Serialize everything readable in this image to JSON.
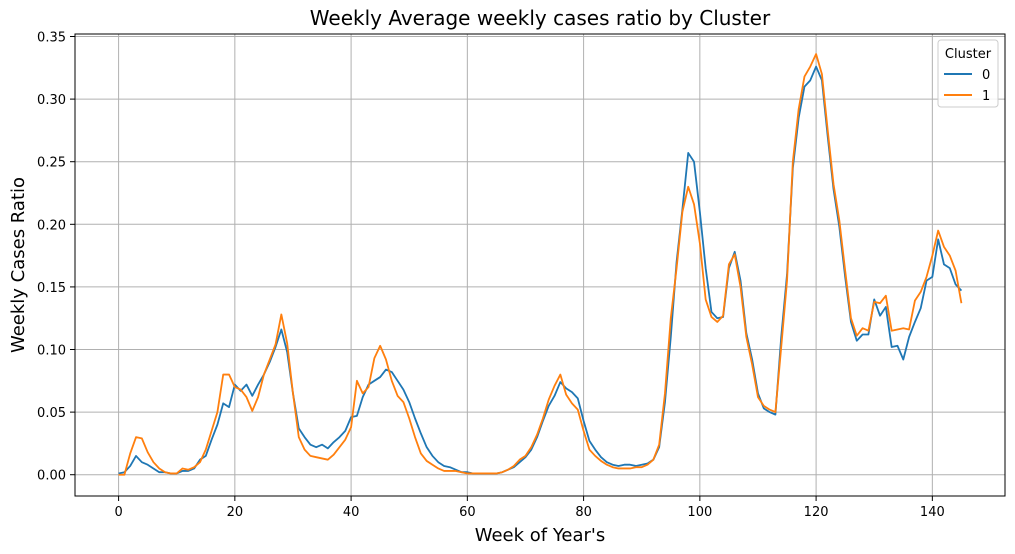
{
  "chart_data": {
    "type": "line",
    "title": "Weekly Average weekly cases ratio by Cluster",
    "xlabel": "Week of Year's",
    "ylabel": "Weekly Cases Ratio",
    "xlim": [
      -7.5,
      152.5
    ],
    "ylim": [
      -0.017,
      0.352
    ],
    "xticks": [
      0,
      20,
      40,
      60,
      80,
      100,
      120,
      140
    ],
    "yticks": [
      0.0,
      0.05,
      0.1,
      0.15,
      0.2,
      0.25,
      0.3,
      0.35
    ],
    "ytick_labels": [
      "0.00",
      "0.05",
      "0.10",
      "0.15",
      "0.20",
      "0.25",
      "0.30",
      "0.35"
    ],
    "grid": true,
    "legend": {
      "title": "Cluster",
      "placement": "top-right"
    },
    "series": [
      {
        "name": "0",
        "color": "#1f77b4",
        "points": [
          [
            0,
            0.001
          ],
          [
            1,
            0.002
          ],
          [
            2,
            0.007
          ],
          [
            3,
            0.015
          ],
          [
            4,
            0.01
          ],
          [
            5,
            0.008
          ],
          [
            6,
            0.005
          ],
          [
            7,
            0.002
          ],
          [
            8,
            0.002
          ],
          [
            9,
            0.001
          ],
          [
            10,
            0.001
          ],
          [
            11,
            0.003
          ],
          [
            12,
            0.003
          ],
          [
            13,
            0.005
          ],
          [
            14,
            0.012
          ],
          [
            15,
            0.015
          ],
          [
            16,
            0.028
          ],
          [
            17,
            0.04
          ],
          [
            18,
            0.057
          ],
          [
            19,
            0.054
          ],
          [
            20,
            0.072
          ],
          [
            21,
            0.067
          ],
          [
            22,
            0.072
          ],
          [
            23,
            0.063
          ],
          [
            24,
            0.072
          ],
          [
            25,
            0.08
          ],
          [
            26,
            0.09
          ],
          [
            27,
            0.102
          ],
          [
            28,
            0.116
          ],
          [
            29,
            0.098
          ],
          [
            30,
            0.065
          ],
          [
            31,
            0.037
          ],
          [
            32,
            0.03
          ],
          [
            33,
            0.024
          ],
          [
            34,
            0.022
          ],
          [
            35,
            0.024
          ],
          [
            36,
            0.021
          ],
          [
            37,
            0.026
          ],
          [
            38,
            0.03
          ],
          [
            39,
            0.035
          ],
          [
            40,
            0.046
          ],
          [
            41,
            0.047
          ],
          [
            42,
            0.062
          ],
          [
            43,
            0.072
          ],
          [
            44,
            0.075
          ],
          [
            45,
            0.078
          ],
          [
            46,
            0.084
          ],
          [
            47,
            0.082
          ],
          [
            48,
            0.075
          ],
          [
            49,
            0.068
          ],
          [
            50,
            0.058
          ],
          [
            51,
            0.045
          ],
          [
            52,
            0.033
          ],
          [
            53,
            0.022
          ],
          [
            54,
            0.015
          ],
          [
            55,
            0.01
          ],
          [
            56,
            0.007
          ],
          [
            57,
            0.006
          ],
          [
            58,
            0.004
          ],
          [
            59,
            0.002
          ],
          [
            60,
            0.002
          ],
          [
            61,
            0.001
          ],
          [
            62,
            0.001
          ],
          [
            63,
            0.001
          ],
          [
            64,
            0.001
          ],
          [
            65,
            0.001
          ],
          [
            66,
            0.002
          ],
          [
            67,
            0.004
          ],
          [
            68,
            0.006
          ],
          [
            69,
            0.01
          ],
          [
            70,
            0.014
          ],
          [
            71,
            0.02
          ],
          [
            72,
            0.03
          ],
          [
            73,
            0.043
          ],
          [
            74,
            0.055
          ],
          [
            75,
            0.063
          ],
          [
            76,
            0.074
          ],
          [
            77,
            0.069
          ],
          [
            78,
            0.066
          ],
          [
            79,
            0.061
          ],
          [
            80,
            0.043
          ],
          [
            81,
            0.027
          ],
          [
            82,
            0.02
          ],
          [
            83,
            0.014
          ],
          [
            84,
            0.01
          ],
          [
            85,
            0.008
          ],
          [
            86,
            0.007
          ],
          [
            87,
            0.008
          ],
          [
            88,
            0.008
          ],
          [
            89,
            0.007
          ],
          [
            90,
            0.008
          ],
          [
            91,
            0.009
          ],
          [
            92,
            0.012
          ],
          [
            93,
            0.022
          ],
          [
            94,
            0.058
          ],
          [
            95,
            0.11
          ],
          [
            96,
            0.17
          ],
          [
            97,
            0.212
          ],
          [
            98,
            0.257
          ],
          [
            99,
            0.25
          ],
          [
            100,
            0.21
          ],
          [
            101,
            0.165
          ],
          [
            102,
            0.13
          ],
          [
            103,
            0.125
          ],
          [
            104,
            0.126
          ],
          [
            105,
            0.165
          ],
          [
            106,
            0.178
          ],
          [
            107,
            0.155
          ],
          [
            108,
            0.113
          ],
          [
            109,
            0.092
          ],
          [
            110,
            0.065
          ],
          [
            111,
            0.053
          ],
          [
            112,
            0.05
          ],
          [
            113,
            0.048
          ],
          [
            114,
            0.11
          ],
          [
            115,
            0.16
          ],
          [
            116,
            0.245
          ],
          [
            117,
            0.285
          ],
          [
            118,
            0.31
          ],
          [
            119,
            0.315
          ],
          [
            120,
            0.326
          ],
          [
            121,
            0.315
          ],
          [
            122,
            0.27
          ],
          [
            123,
            0.228
          ],
          [
            124,
            0.198
          ],
          [
            125,
            0.158
          ],
          [
            126,
            0.122
          ],
          [
            127,
            0.107
          ],
          [
            128,
            0.112
          ],
          [
            129,
            0.112
          ],
          [
            130,
            0.14
          ],
          [
            131,
            0.127
          ],
          [
            132,
            0.134
          ],
          [
            133,
            0.102
          ],
          [
            134,
            0.103
          ],
          [
            135,
            0.092
          ],
          [
            136,
            0.11
          ],
          [
            137,
            0.122
          ],
          [
            138,
            0.133
          ],
          [
            139,
            0.155
          ],
          [
            140,
            0.158
          ],
          [
            141,
            0.188
          ],
          [
            142,
            0.168
          ],
          [
            143,
            0.165
          ],
          [
            144,
            0.152
          ],
          [
            145,
            0.147
          ]
        ]
      },
      {
        "name": "1",
        "color": "#ff7f0e",
        "points": [
          [
            0,
            0.0
          ],
          [
            1,
            0.0
          ],
          [
            2,
            0.017
          ],
          [
            3,
            0.03
          ],
          [
            4,
            0.029
          ],
          [
            5,
            0.018
          ],
          [
            6,
            0.01
          ],
          [
            7,
            0.005
          ],
          [
            8,
            0.002
          ],
          [
            9,
            0.001
          ],
          [
            10,
            0.001
          ],
          [
            11,
            0.005
          ],
          [
            12,
            0.004
          ],
          [
            13,
            0.006
          ],
          [
            14,
            0.01
          ],
          [
            15,
            0.02
          ],
          [
            16,
            0.035
          ],
          [
            17,
            0.05
          ],
          [
            18,
            0.08
          ],
          [
            19,
            0.08
          ],
          [
            20,
            0.07
          ],
          [
            21,
            0.068
          ],
          [
            22,
            0.062
          ],
          [
            23,
            0.051
          ],
          [
            24,
            0.062
          ],
          [
            25,
            0.08
          ],
          [
            26,
            0.092
          ],
          [
            27,
            0.104
          ],
          [
            28,
            0.128
          ],
          [
            29,
            0.105
          ],
          [
            30,
            0.065
          ],
          [
            31,
            0.03
          ],
          [
            32,
            0.02
          ],
          [
            33,
            0.015
          ],
          [
            34,
            0.014
          ],
          [
            35,
            0.013
          ],
          [
            36,
            0.012
          ],
          [
            37,
            0.016
          ],
          [
            38,
            0.022
          ],
          [
            39,
            0.028
          ],
          [
            40,
            0.038
          ],
          [
            41,
            0.075
          ],
          [
            42,
            0.065
          ],
          [
            43,
            0.07
          ],
          [
            44,
            0.093
          ],
          [
            45,
            0.103
          ],
          [
            46,
            0.092
          ],
          [
            47,
            0.075
          ],
          [
            48,
            0.063
          ],
          [
            49,
            0.058
          ],
          [
            50,
            0.045
          ],
          [
            51,
            0.03
          ],
          [
            52,
            0.017
          ],
          [
            53,
            0.011
          ],
          [
            54,
            0.008
          ],
          [
            55,
            0.005
          ],
          [
            56,
            0.003
          ],
          [
            57,
            0.003
          ],
          [
            58,
            0.003
          ],
          [
            59,
            0.002
          ],
          [
            60,
            0.001
          ],
          [
            61,
            0.001
          ],
          [
            62,
            0.001
          ],
          [
            63,
            0.001
          ],
          [
            64,
            0.001
          ],
          [
            65,
            0.001
          ],
          [
            66,
            0.002
          ],
          [
            67,
            0.004
          ],
          [
            68,
            0.007
          ],
          [
            69,
            0.012
          ],
          [
            70,
            0.015
          ],
          [
            71,
            0.022
          ],
          [
            72,
            0.032
          ],
          [
            73,
            0.045
          ],
          [
            74,
            0.06
          ],
          [
            75,
            0.071
          ],
          [
            76,
            0.08
          ],
          [
            77,
            0.064
          ],
          [
            78,
            0.057
          ],
          [
            79,
            0.052
          ],
          [
            80,
            0.035
          ],
          [
            81,
            0.02
          ],
          [
            82,
            0.015
          ],
          [
            83,
            0.011
          ],
          [
            84,
            0.008
          ],
          [
            85,
            0.006
          ],
          [
            86,
            0.005
          ],
          [
            87,
            0.005
          ],
          [
            88,
            0.005
          ],
          [
            89,
            0.006
          ],
          [
            90,
            0.006
          ],
          [
            91,
            0.008
          ],
          [
            92,
            0.012
          ],
          [
            93,
            0.024
          ],
          [
            94,
            0.065
          ],
          [
            95,
            0.125
          ],
          [
            96,
            0.165
          ],
          [
            97,
            0.21
          ],
          [
            98,
            0.23
          ],
          [
            99,
            0.216
          ],
          [
            100,
            0.185
          ],
          [
            101,
            0.14
          ],
          [
            102,
            0.126
          ],
          [
            103,
            0.122
          ],
          [
            104,
            0.127
          ],
          [
            105,
            0.168
          ],
          [
            106,
            0.176
          ],
          [
            107,
            0.15
          ],
          [
            108,
            0.11
          ],
          [
            109,
            0.088
          ],
          [
            110,
            0.062
          ],
          [
            111,
            0.055
          ],
          [
            112,
            0.052
          ],
          [
            113,
            0.05
          ],
          [
            114,
            0.102
          ],
          [
            115,
            0.155
          ],
          [
            116,
            0.25
          ],
          [
            117,
            0.292
          ],
          [
            118,
            0.318
          ],
          [
            119,
            0.326
          ],
          [
            120,
            0.336
          ],
          [
            121,
            0.32
          ],
          [
            122,
            0.275
          ],
          [
            123,
            0.232
          ],
          [
            124,
            0.203
          ],
          [
            125,
            0.163
          ],
          [
            126,
            0.125
          ],
          [
            127,
            0.111
          ],
          [
            128,
            0.117
          ],
          [
            129,
            0.115
          ],
          [
            130,
            0.138
          ],
          [
            131,
            0.137
          ],
          [
            132,
            0.143
          ],
          [
            133,
            0.115
          ],
          [
            134,
            0.116
          ],
          [
            135,
            0.117
          ],
          [
            136,
            0.116
          ],
          [
            137,
            0.139
          ],
          [
            138,
            0.146
          ],
          [
            139,
            0.158
          ],
          [
            140,
            0.175
          ],
          [
            141,
            0.195
          ],
          [
            142,
            0.182
          ],
          [
            143,
            0.175
          ],
          [
            144,
            0.163
          ],
          [
            145,
            0.137
          ]
        ]
      }
    ]
  }
}
